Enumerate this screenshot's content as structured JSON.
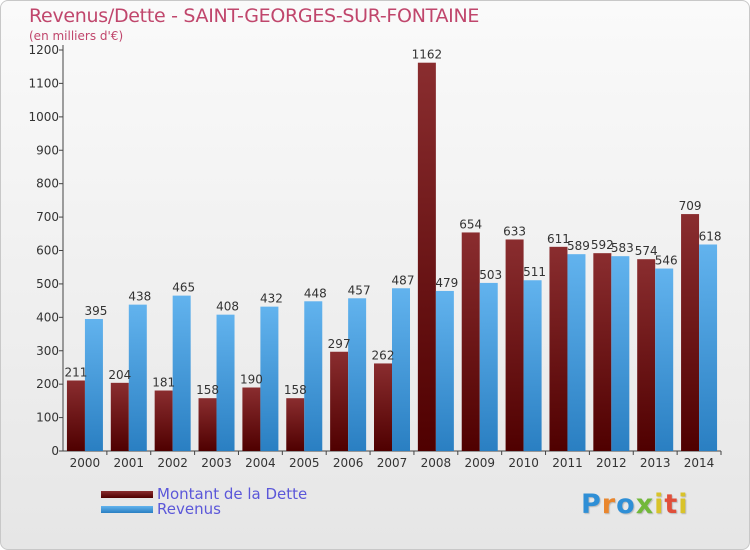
{
  "chart_data": {
    "type": "bar",
    "title": "Revenus/Dette - SAINT-GEORGES-SUR-FONTAINE",
    "subtitle": "(en milliers d'€)",
    "xlabel": "",
    "ylabel": "",
    "ylim": [
      0,
      1200
    ],
    "yticks": [
      0,
      100,
      200,
      300,
      400,
      500,
      600,
      700,
      800,
      900,
      1000,
      1100,
      1200
    ],
    "grid": false,
    "legend_position": "bottom-left",
    "categories": [
      "2000",
      "2001",
      "2002",
      "2003",
      "2004",
      "2005",
      "2006",
      "2007",
      "2008",
      "2009",
      "2010",
      "2011",
      "2012",
      "2013",
      "2014"
    ],
    "series": [
      {
        "name": "Montant de la Dette",
        "color": "#6e1414",
        "values": [
          211,
          204,
          181,
          158,
          190,
          158,
          297,
          262,
          1162,
          654,
          633,
          611,
          592,
          574,
          709
        ],
        "labels": [
          "211",
          "204",
          "181",
          "158",
          "190",
          "158",
          "297",
          "262",
          "1162",
          "654",
          "633",
          "611",
          "592",
          "574",
          "709"
        ]
      },
      {
        "name": "Revenus",
        "color": "#3c9ae0",
        "values": [
          395,
          438,
          465,
          408,
          432,
          448,
          457,
          487,
          479,
          503,
          511,
          589,
          583,
          546,
          618
        ],
        "labels": [
          "395",
          "438",
          "465",
          "408",
          "432",
          "448",
          "457",
          "487",
          "479",
          "503",
          "511",
          "589",
          "583",
          "546",
          "618"
        ]
      }
    ]
  },
  "logo": {
    "letters": [
      "P",
      "r",
      "o",
      "x",
      "i",
      "t",
      "i"
    ]
  }
}
